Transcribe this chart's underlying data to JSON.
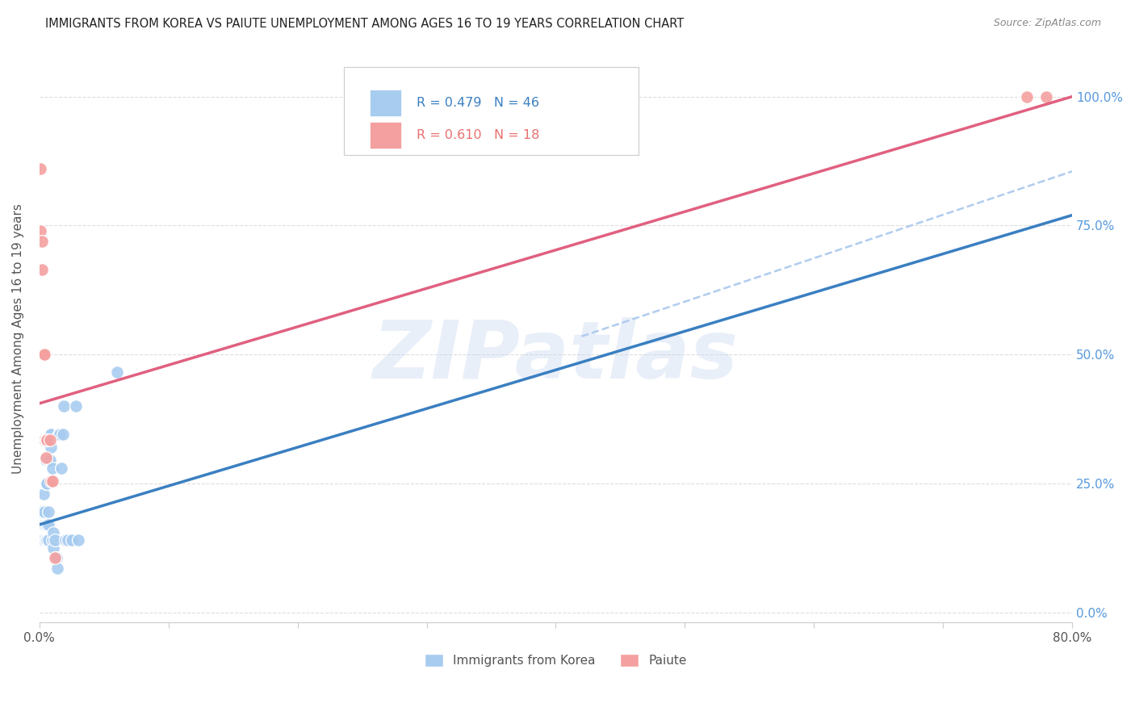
{
  "title": "IMMIGRANTS FROM KOREA VS PAIUTE UNEMPLOYMENT AMONG AGES 16 TO 19 YEARS CORRELATION CHART",
  "source": "Source: ZipAtlas.com",
  "ylabel": "Unemployment Among Ages 16 to 19 years",
  "xlim": [
    0.0,
    0.8
  ],
  "ylim": [
    -0.02,
    1.08
  ],
  "xtick_positions": [
    0.0,
    0.1,
    0.2,
    0.3,
    0.4,
    0.5,
    0.6,
    0.7,
    0.8
  ],
  "xtick_labels": [
    "0.0%",
    "",
    "",
    "",
    "",
    "",
    "",
    "",
    "80.0%"
  ],
  "ytick_positions_right": [
    0.0,
    0.25,
    0.5,
    0.75,
    1.0
  ],
  "ytick_labels_right": [
    "0.0%",
    "25.0%",
    "50.0%",
    "75.0%",
    "100.0%"
  ],
  "blue_R": 0.479,
  "blue_N": 46,
  "pink_R": 0.61,
  "pink_N": 18,
  "blue_color": "#A8CCF0",
  "pink_color": "#F4A0A0",
  "blue_line_color": "#3A7FC1",
  "pink_line_color": "#E06080",
  "dashed_line_color": "#B0CCEE",
  "watermark": "ZIPatlas",
  "background_color": "#FFFFFF",
  "grid_color": "#DDDDDD",
  "blue_scatter": [
    [
      0.0,
      0.175
    ],
    [
      0.001,
      0.195
    ],
    [
      0.001,
      0.14
    ],
    [
      0.002,
      0.17
    ],
    [
      0.002,
      0.195
    ],
    [
      0.002,
      0.14
    ],
    [
      0.003,
      0.17
    ],
    [
      0.003,
      0.17
    ],
    [
      0.003,
      0.23
    ],
    [
      0.004,
      0.14
    ],
    [
      0.004,
      0.17
    ],
    [
      0.004,
      0.195
    ],
    [
      0.005,
      0.14
    ],
    [
      0.005,
      0.25
    ],
    [
      0.005,
      0.295
    ],
    [
      0.005,
      0.17
    ],
    [
      0.006,
      0.14
    ],
    [
      0.006,
      0.17
    ],
    [
      0.006,
      0.25
    ],
    [
      0.007,
      0.295
    ],
    [
      0.007,
      0.14
    ],
    [
      0.007,
      0.195
    ],
    [
      0.007,
      0.17
    ],
    [
      0.008,
      0.295
    ],
    [
      0.008,
      0.345
    ],
    [
      0.008,
      0.345
    ],
    [
      0.009,
      0.345
    ],
    [
      0.009,
      0.32
    ],
    [
      0.01,
      0.28
    ],
    [
      0.01,
      0.14
    ],
    [
      0.011,
      0.155
    ],
    [
      0.011,
      0.125
    ],
    [
      0.012,
      0.14
    ],
    [
      0.013,
      0.105
    ],
    [
      0.014,
      0.085
    ],
    [
      0.015,
      0.345
    ],
    [
      0.016,
      0.345
    ],
    [
      0.017,
      0.28
    ],
    [
      0.018,
      0.345
    ],
    [
      0.019,
      0.4
    ],
    [
      0.02,
      0.14
    ],
    [
      0.022,
      0.14
    ],
    [
      0.025,
      0.14
    ],
    [
      0.028,
      0.4
    ],
    [
      0.03,
      0.14
    ],
    [
      0.06,
      0.465
    ]
  ],
  "pink_scatter": [
    [
      0.001,
      0.86
    ],
    [
      0.001,
      0.74
    ],
    [
      0.002,
      0.665
    ],
    [
      0.002,
      0.5
    ],
    [
      0.002,
      0.72
    ],
    [
      0.003,
      0.5
    ],
    [
      0.003,
      0.5
    ],
    [
      0.004,
      0.5
    ],
    [
      0.004,
      0.335
    ],
    [
      0.005,
      0.335
    ],
    [
      0.005,
      0.3
    ],
    [
      0.006,
      0.335
    ],
    [
      0.008,
      0.335
    ],
    [
      0.009,
      0.255
    ],
    [
      0.01,
      0.255
    ],
    [
      0.012,
      0.105
    ],
    [
      0.765,
      1.0
    ],
    [
      0.78,
      1.0
    ]
  ],
  "blue_line": {
    "x0": 0.0,
    "y0": 0.17,
    "x1": 0.8,
    "y1": 0.77
  },
  "pink_line": {
    "x0": 0.0,
    "y0": 0.405,
    "x1": 0.8,
    "y1": 1.0
  },
  "dashed_line": {
    "x0": 0.42,
    "y0": 0.535,
    "x1": 0.8,
    "y1": 0.855
  },
  "bottom_legend_blue": "Immigrants from Korea",
  "bottom_legend_pink": "Paiute"
}
